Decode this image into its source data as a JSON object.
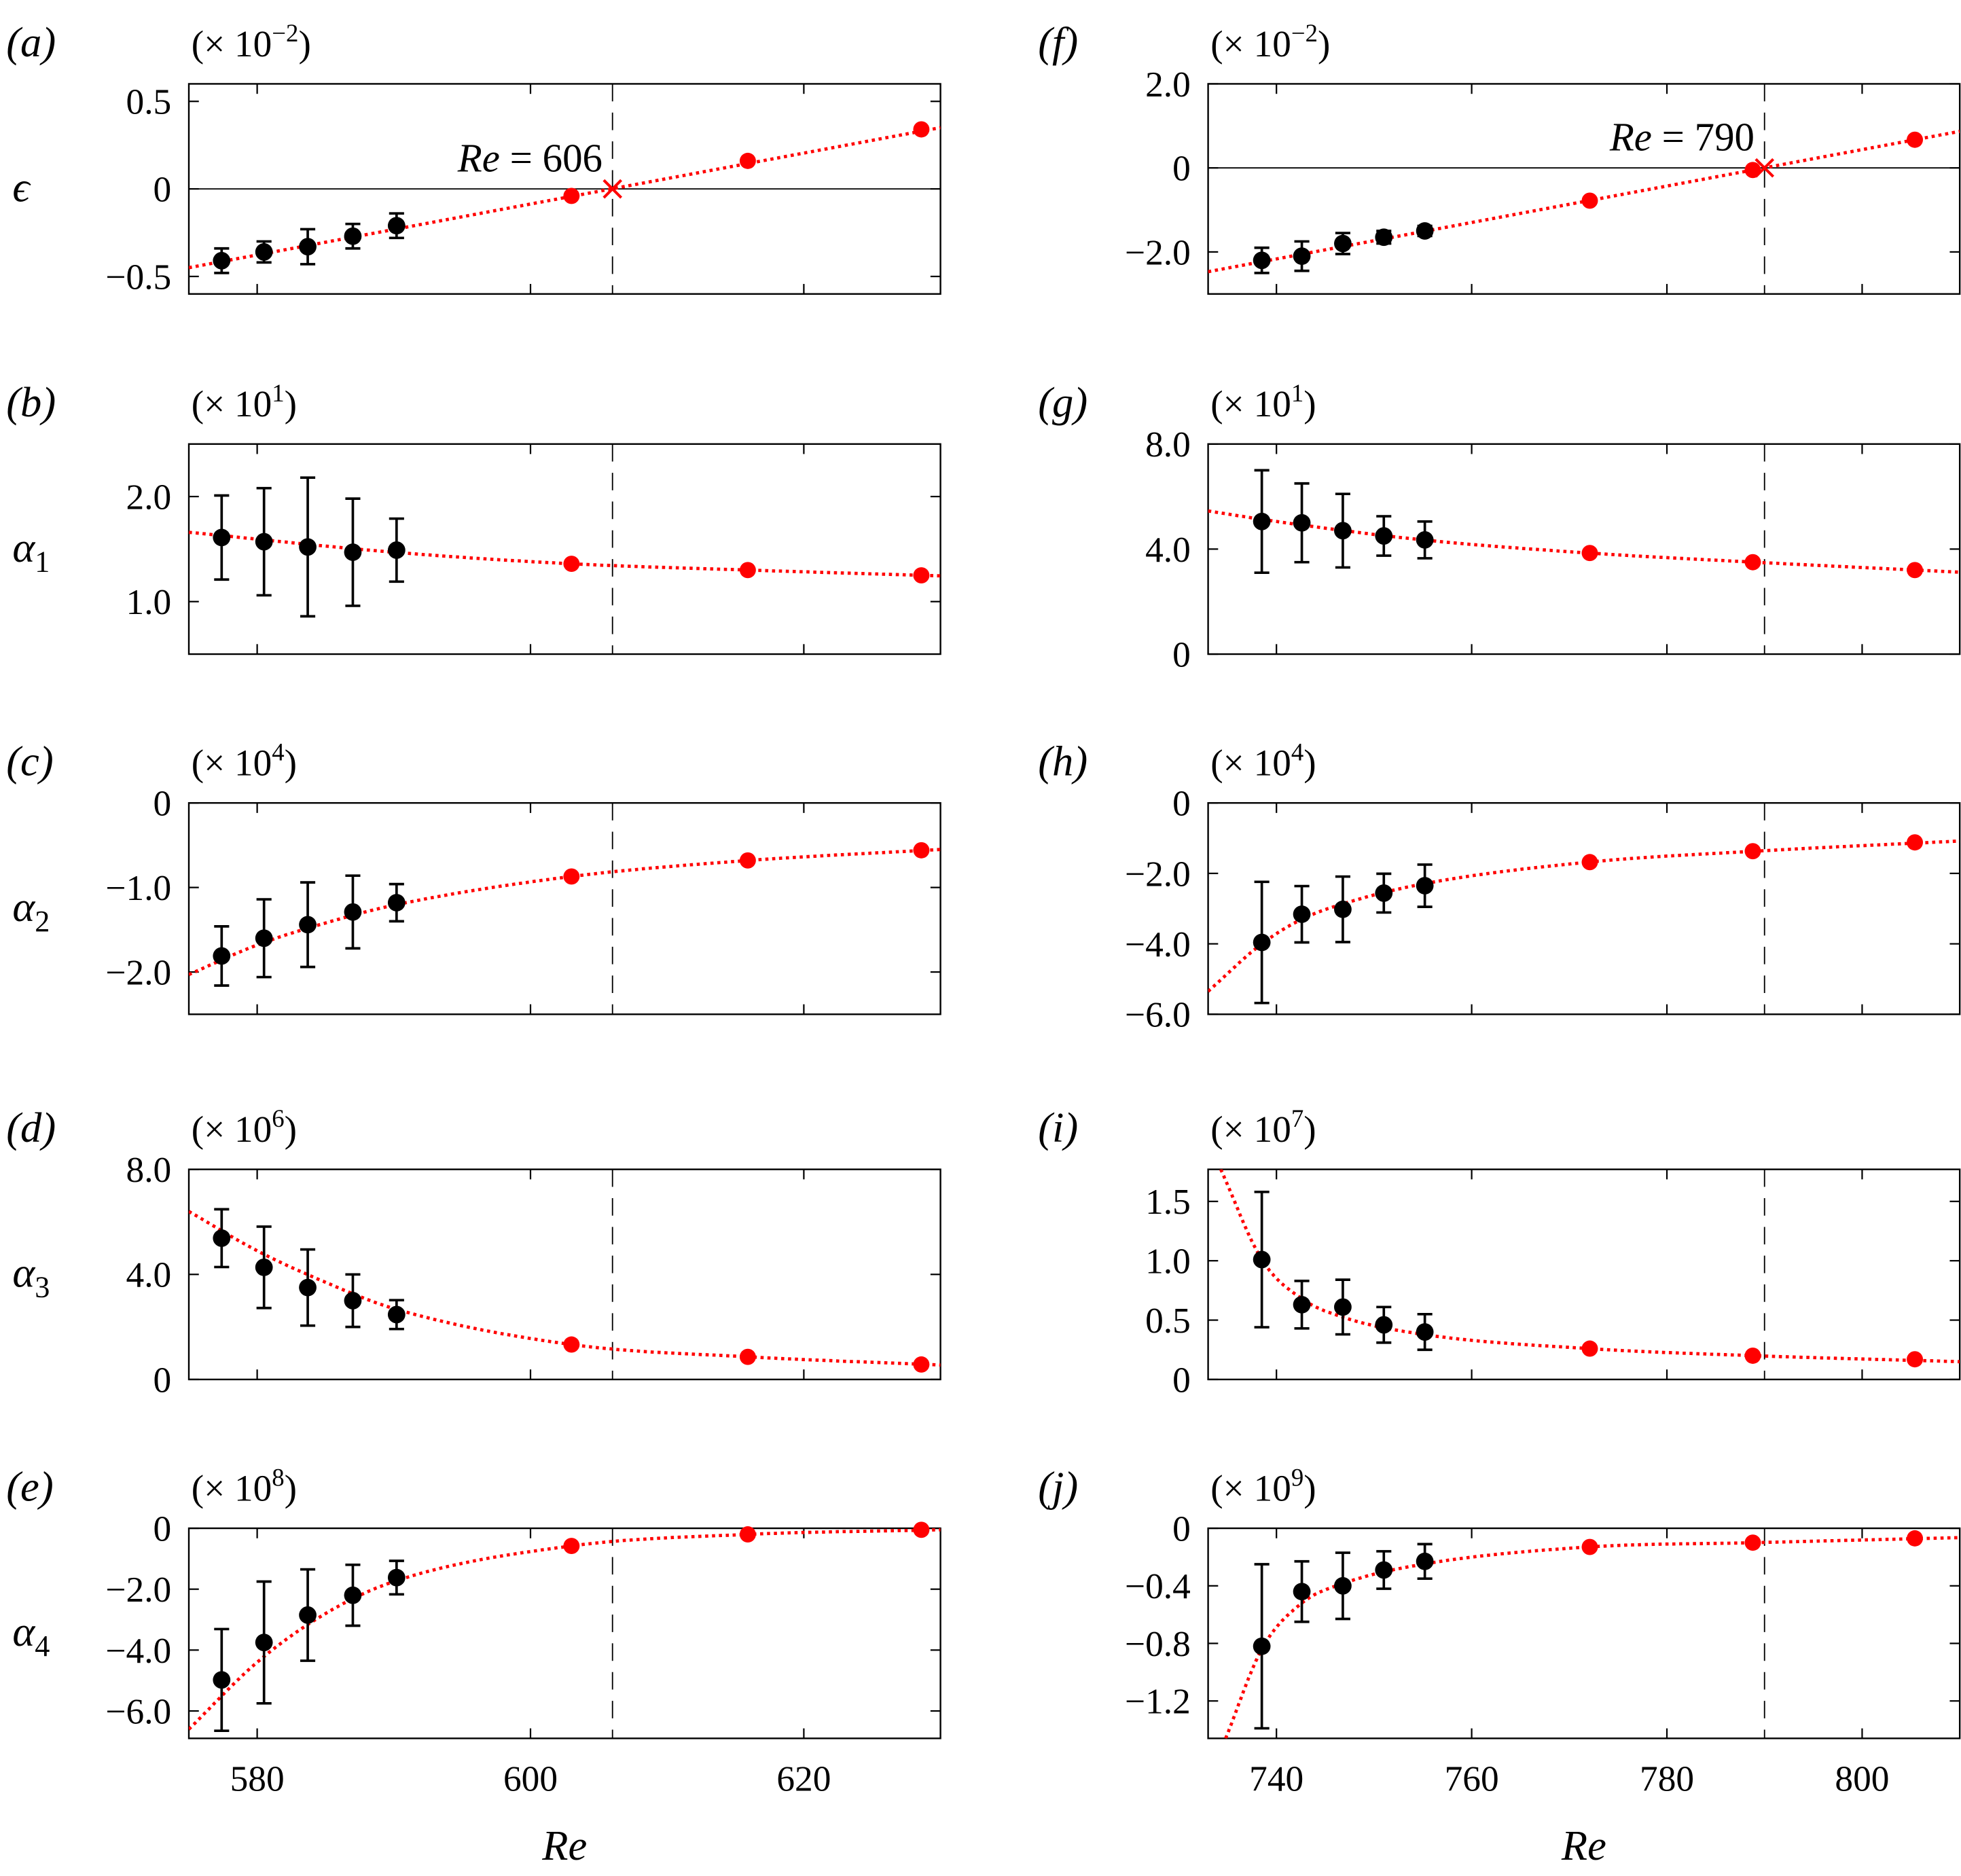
{
  "chart_data": [
    {
      "type": "scatter",
      "panel_label": "(a)",
      "ylabel": "ϵ",
      "ylabel_sub": "",
      "multiplier": "(× 10",
      "multiplier_exp": "−2",
      "xlim": [
        575,
        630
      ],
      "ylim": [
        -0.6,
        0.6
      ],
      "yticks": [
        0.5,
        0,
        -0.5
      ],
      "yticklabels": [
        "0.5",
        "0",
        "−0.5"
      ],
      "zero_line": true,
      "critical_Re": 606,
      "annotation": {
        "label_italic": "Re",
        "label_rest": " = 606"
      },
      "measured": [
        {
          "x": 577.4,
          "y": -0.41,
          "err": 0.07
        },
        {
          "x": 580.5,
          "y": -0.36,
          "err": 0.06
        },
        {
          "x": 583.7,
          "y": -0.33,
          "err": 0.1
        },
        {
          "x": 587.0,
          "y": -0.27,
          "err": 0.07
        },
        {
          "x": 590.2,
          "y": -0.21,
          "err": 0.07
        }
      ],
      "computed": [
        {
          "x": 603,
          "y": -0.04
        },
        {
          "x": 615.9,
          "y": 0.16
        },
        {
          "x": 628.6,
          "y": 0.34
        }
      ],
      "fit": {
        "x": [
          575,
          630
        ],
        "y": [
          -0.45,
          0.35
        ]
      }
    },
    {
      "type": "scatter",
      "panel_label": "(b)",
      "ylabel": "α",
      "ylabel_sub": "1",
      "multiplier": "(× 10",
      "multiplier_exp": "1",
      "xlim": [
        575,
        630
      ],
      "ylim": [
        0.5,
        2.5
      ],
      "yticks": [
        2.0,
        1.0
      ],
      "yticklabels": [
        "2.0",
        "1.0"
      ],
      "zero_line": false,
      "critical_Re": 606,
      "measured": [
        {
          "x": 577.4,
          "y": 1.61,
          "err": 0.4
        },
        {
          "x": 580.5,
          "y": 1.57,
          "err": 0.51
        },
        {
          "x": 583.7,
          "y": 1.52,
          "err": 0.66
        },
        {
          "x": 587.0,
          "y": 1.47,
          "err": 0.51
        },
        {
          "x": 590.2,
          "y": 1.49,
          "err": 0.3
        }
      ],
      "computed": [
        {
          "x": 603,
          "y": 1.36
        },
        {
          "x": 615.9,
          "y": 1.3
        },
        {
          "x": 628.6,
          "y": 1.25
        }
      ],
      "fit": {
        "x": [
          575,
          590,
          603,
          616,
          630
        ],
        "y": [
          1.66,
          1.47,
          1.36,
          1.3,
          1.245
        ]
      }
    },
    {
      "type": "scatter",
      "panel_label": "(c)",
      "ylabel": "α",
      "ylabel_sub": "2",
      "multiplier": "(× 10",
      "multiplier_exp": "4",
      "xlim": [
        575,
        630
      ],
      "ylim": [
        -2.5,
        0
      ],
      "yticks": [
        0,
        -1.0,
        -2.0
      ],
      "yticklabels": [
        "0",
        "−1.0",
        "−2.0"
      ],
      "zero_line": false,
      "critical_Re": 606,
      "measured": [
        {
          "x": 577.4,
          "y": -1.81,
          "err": 0.35
        },
        {
          "x": 580.5,
          "y": -1.6,
          "err": 0.46
        },
        {
          "x": 583.7,
          "y": -1.44,
          "err": 0.5
        },
        {
          "x": 587.0,
          "y": -1.29,
          "err": 0.43
        },
        {
          "x": 590.2,
          "y": -1.18,
          "err": 0.22
        }
      ],
      "computed": [
        {
          "x": 603,
          "y": -0.87
        },
        {
          "x": 615.9,
          "y": -0.68
        },
        {
          "x": 628.6,
          "y": -0.56
        }
      ],
      "fit": {
        "x": [
          575,
          580,
          585,
          590,
          603,
          616,
          630
        ],
        "y": [
          -2.03,
          -1.68,
          -1.42,
          -1.21,
          -0.87,
          -0.68,
          -0.55
        ]
      }
    },
    {
      "type": "scatter",
      "panel_label": "(d)",
      "ylabel": "α",
      "ylabel_sub": "3",
      "multiplier": "(× 10",
      "multiplier_exp": "6",
      "xlim": [
        575,
        630
      ],
      "ylim": [
        0,
        8
      ],
      "yticks": [
        8.0,
        4.0,
        0
      ],
      "yticklabels": [
        "8.0",
        "4.0",
        "0"
      ],
      "zero_line": false,
      "critical_Re": 606,
      "measured": [
        {
          "x": 577.4,
          "y": 5.38,
          "err": 1.1
        },
        {
          "x": 580.5,
          "y": 4.27,
          "err": 1.55
        },
        {
          "x": 583.7,
          "y": 3.5,
          "err": 1.45
        },
        {
          "x": 587.0,
          "y": 3.0,
          "err": 1.0
        },
        {
          "x": 590.2,
          "y": 2.47,
          "err": 0.55
        }
      ],
      "computed": [
        {
          "x": 603,
          "y": 1.33
        },
        {
          "x": 615.9,
          "y": 0.86
        },
        {
          "x": 628.6,
          "y": 0.57
        }
      ],
      "fit": {
        "x": [
          575,
          580,
          585,
          590,
          603,
          616,
          630
        ],
        "y": [
          6.4,
          4.9,
          3.7,
          2.7,
          1.33,
          0.86,
          0.55
        ]
      }
    },
    {
      "type": "scatter",
      "panel_label": "(e)",
      "ylabel": "α",
      "ylabel_sub": "4",
      "multiplier": "(× 10",
      "multiplier_exp": "8",
      "xlim": [
        575,
        630
      ],
      "ylim": [
        -6.9,
        0
      ],
      "yticks": [
        0,
        -2.0,
        -4.0,
        -6.0
      ],
      "yticklabels": [
        "0",
        "−2.0",
        "−4.0",
        "−6.0"
      ],
      "zero_line": false,
      "critical_Re": 606,
      "xticks": [
        580,
        600,
        620
      ],
      "xticklabels": [
        "580",
        "600",
        "620"
      ],
      "xlabel": "Re",
      "measured": [
        {
          "x": 577.4,
          "y": -4.98,
          "err": 1.67
        },
        {
          "x": 580.5,
          "y": -3.75,
          "err": 2.0
        },
        {
          "x": 583.7,
          "y": -2.85,
          "err": 1.5
        },
        {
          "x": 587.0,
          "y": -2.2,
          "err": 1.0
        },
        {
          "x": 590.2,
          "y": -1.62,
          "err": 0.55
        }
      ],
      "computed": [
        {
          "x": 603,
          "y": -0.58
        },
        {
          "x": 615.9,
          "y": -0.2
        },
        {
          "x": 628.6,
          "y": -0.05
        }
      ],
      "fit": {
        "x": [
          575,
          580,
          585,
          590,
          603,
          616,
          630
        ],
        "y": [
          -6.6,
          -4.4,
          -2.8,
          -1.75,
          -0.58,
          -0.2,
          -0.05
        ]
      }
    },
    {
      "type": "scatter",
      "panel_label": "(f)",
      "ylabel": "",
      "ylabel_sub": "",
      "multiplier": "(× 10",
      "multiplier_exp": "−2",
      "xlim": [
        733,
        810
      ],
      "ylim": [
        -3,
        2
      ],
      "yticks": [
        2.0,
        0,
        -2.0
      ],
      "yticklabels": [
        "2.0",
        "0",
        "−2.0"
      ],
      "zero_line": true,
      "critical_Re": 790,
      "annotation": {
        "label_italic": "Re",
        "label_rest": " = 790"
      },
      "measured": [
        {
          "x": 738.5,
          "y": -2.2,
          "err": 0.3
        },
        {
          "x": 742.6,
          "y": -2.1,
          "err": 0.35
        },
        {
          "x": 746.8,
          "y": -1.8,
          "err": 0.25
        },
        {
          "x": 751.0,
          "y": -1.65,
          "err": 0.15
        },
        {
          "x": 755.2,
          "y": -1.5,
          "err": 0.12
        }
      ],
      "computed": [
        {
          "x": 772.1,
          "y": -0.78
        },
        {
          "x": 788.8,
          "y": -0.05
        },
        {
          "x": 805.4,
          "y": 0.67
        }
      ],
      "fit": {
        "x": [
          733,
          810
        ],
        "y": [
          -2.47,
          0.87
        ]
      }
    },
    {
      "type": "scatter",
      "panel_label": "(g)",
      "ylabel": "",
      "ylabel_sub": "",
      "multiplier": "(× 10",
      "multiplier_exp": "1",
      "xlim": [
        733,
        810
      ],
      "ylim": [
        0,
        8
      ],
      "yticks": [
        8.0,
        4.0,
        0
      ],
      "yticklabels": [
        "8.0",
        "4.0",
        "0"
      ],
      "zero_line": false,
      "critical_Re": 790,
      "measured": [
        {
          "x": 738.5,
          "y": 5.05,
          "err": 1.95
        },
        {
          "x": 742.6,
          "y": 5.0,
          "err": 1.5
        },
        {
          "x": 746.8,
          "y": 4.7,
          "err": 1.4
        },
        {
          "x": 751.0,
          "y": 4.5,
          "err": 0.75
        },
        {
          "x": 755.2,
          "y": 4.35,
          "err": 0.7
        }
      ],
      "computed": [
        {
          "x": 772.1,
          "y": 3.85
        },
        {
          "x": 788.8,
          "y": 3.5
        },
        {
          "x": 805.4,
          "y": 3.2
        }
      ],
      "fit": {
        "x": [
          733,
          740,
          755,
          772,
          789,
          810
        ],
        "y": [
          5.45,
          5.05,
          4.35,
          3.85,
          3.5,
          3.12
        ]
      }
    },
    {
      "type": "scatter",
      "panel_label": "(h)",
      "ylabel": "",
      "ylabel_sub": "",
      "multiplier": "(× 10",
      "multiplier_exp": "4",
      "xlim": [
        733,
        810
      ],
      "ylim": [
        -6,
        0
      ],
      "yticks": [
        0,
        -2.0,
        -4.0,
        -6.0
      ],
      "yticklabels": [
        "0",
        "−2.0",
        "−4.0",
        "−6.0"
      ],
      "zero_line": false,
      "critical_Re": 790,
      "measured": [
        {
          "x": 738.5,
          "y": -3.96,
          "err": 1.72
        },
        {
          "x": 742.6,
          "y": -3.16,
          "err": 0.8
        },
        {
          "x": 746.8,
          "y": -3.02,
          "err": 0.93
        },
        {
          "x": 751.0,
          "y": -2.56,
          "err": 0.55
        },
        {
          "x": 755.2,
          "y": -2.35,
          "err": 0.6
        }
      ],
      "computed": [
        {
          "x": 772.1,
          "y": -1.68
        },
        {
          "x": 788.8,
          "y": -1.37
        },
        {
          "x": 805.4,
          "y": -1.12
        }
      ],
      "fit": {
        "x": [
          733,
          738.5,
          742.6,
          747,
          755,
          772,
          789,
          810
        ],
        "y": [
          -5.35,
          -4.0,
          -3.3,
          -2.85,
          -2.3,
          -1.68,
          -1.37,
          -1.08
        ]
      }
    },
    {
      "type": "scatter",
      "panel_label": "(i)",
      "ylabel": "",
      "ylabel_sub": "",
      "multiplier": "(× 10",
      "multiplier_exp": "7",
      "xlim": [
        733,
        810
      ],
      "ylim": [
        0,
        1.77
      ],
      "yticks": [
        1.5,
        1.0,
        0.5,
        0
      ],
      "yticklabels": [
        "1.5",
        "1.0",
        "0.5",
        "0"
      ],
      "zero_line": false,
      "critical_Re": 790,
      "measured": [
        {
          "x": 738.5,
          "y": 1.01,
          "err": 0.57
        },
        {
          "x": 742.6,
          "y": 0.63,
          "err": 0.2
        },
        {
          "x": 746.8,
          "y": 0.61,
          "err": 0.23
        },
        {
          "x": 751.0,
          "y": 0.46,
          "err": 0.15
        },
        {
          "x": 755.2,
          "y": 0.4,
          "err": 0.15
        }
      ],
      "computed": [
        {
          "x": 772.1,
          "y": 0.26
        },
        {
          "x": 788.8,
          "y": 0.2
        },
        {
          "x": 805.4,
          "y": 0.17
        }
      ],
      "fit": {
        "x": [
          734.3,
          738.5,
          742.6,
          747,
          755,
          772,
          789,
          810
        ],
        "y": [
          1.77,
          1.01,
          0.68,
          0.52,
          0.38,
          0.26,
          0.2,
          0.15
        ]
      }
    },
    {
      "type": "scatter",
      "panel_label": "(j)",
      "ylabel": "",
      "ylabel_sub": "",
      "multiplier": "(× 10",
      "multiplier_exp": "9",
      "xlim": [
        733,
        810
      ],
      "ylim": [
        -1.46,
        0
      ],
      "yticks": [
        0,
        -0.4,
        -0.8,
        -1.2
      ],
      "yticklabels": [
        "0",
        "−0.4",
        "−0.8",
        "−1.2"
      ],
      "zero_line": false,
      "critical_Re": 790,
      "xticks": [
        740,
        760,
        780,
        800
      ],
      "xticklabels": [
        "740",
        "760",
        "780",
        "800"
      ],
      "xlabel": "Re",
      "measured": [
        {
          "x": 738.5,
          "y": -0.82,
          "err": 0.57
        },
        {
          "x": 742.6,
          "y": -0.44,
          "err": 0.21
        },
        {
          "x": 746.8,
          "y": -0.4,
          "err": 0.23
        },
        {
          "x": 751.0,
          "y": -0.29,
          "err": 0.13
        },
        {
          "x": 755.2,
          "y": -0.23,
          "err": 0.12
        }
      ],
      "computed": [
        {
          "x": 772.1,
          "y": -0.13
        },
        {
          "x": 788.8,
          "y": -0.1
        },
        {
          "x": 805.4,
          "y": -0.07
        }
      ],
      "fit": {
        "x": [
          734.8,
          738.5,
          742.6,
          747,
          755,
          772,
          789,
          810
        ],
        "y": [
          -1.46,
          -0.84,
          -0.52,
          -0.38,
          -0.25,
          -0.13,
          -0.1,
          -0.065
        ]
      }
    }
  ],
  "colors": {
    "measured": "#000000",
    "computed": "#ff0000",
    "fit": "#ff0000",
    "critical_marker": "#ff0000"
  }
}
